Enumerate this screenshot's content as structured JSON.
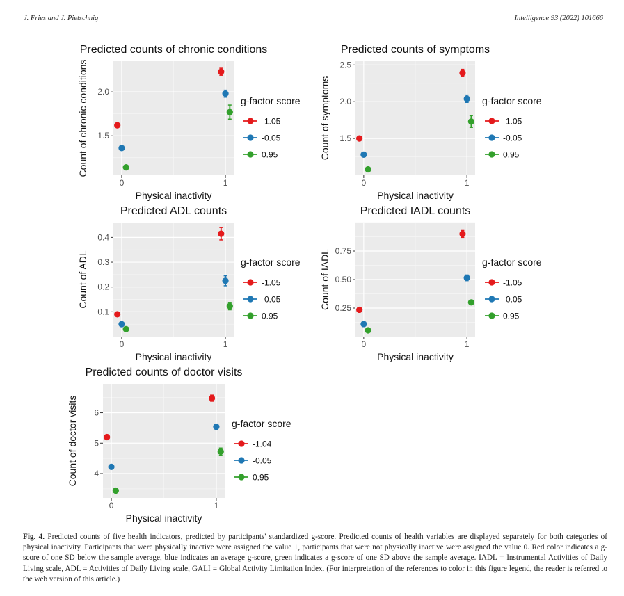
{
  "header": {
    "authors": "J. Fries and J. Pietschnig",
    "journal": "Intelligence 93 (2022) 101666"
  },
  "colors": {
    "red": "#e41a1c",
    "blue": "#1f78b4",
    "green": "#33a02c",
    "panel_bg": "#ebebeb",
    "grid": "#ffffff"
  },
  "caption": {
    "label": "Fig. 4.",
    "text": "Predicted counts of five health indicators, predicted by participants' standardized g-score. Predicted counts of health variables are displayed separately for both categories of physical inactivity. Participants that were physically inactive were assigned the value 1, participants that were not physically inactive were assigned the value 0. Red color indicates a g-score of one SD below the sample average, blue indicates an average g-score, green indicates a g-score of one SD above the sample average. IADL = Instrumental Activities of Daily Living scale, ADL = Activities of Daily Living scale, GALI = Global Activity Limitation Index. (For interpretation of the references to color in this figure legend, the reader is referred to the web version of this article.)"
  },
  "chart_data": [
    {
      "type": "scatter",
      "title": "Predicted counts of chronic conditions",
      "xlabel": "Physical inactivity",
      "ylabel": "Count of chronic conditions",
      "x_ticks": [
        "0",
        "1"
      ],
      "y_ticks": [
        "1.5",
        "2.0"
      ],
      "ylim": [
        1.05,
        2.35
      ],
      "legend_title": "g-factor score",
      "series": [
        {
          "name": "-1.05",
          "color": "red",
          "points": [
            {
              "x": 0,
              "y": 1.62
            },
            {
              "x": 1,
              "y": 2.23,
              "lo": 2.19,
              "hi": 2.27
            }
          ]
        },
        {
          "name": "-0.05",
          "color": "blue",
          "points": [
            {
              "x": 0,
              "y": 1.36
            },
            {
              "x": 1,
              "y": 1.98,
              "lo": 1.94,
              "hi": 2.02
            }
          ]
        },
        {
          "name": "0.95",
          "color": "green",
          "points": [
            {
              "x": 0,
              "y": 1.14
            },
            {
              "x": 1,
              "y": 1.77,
              "lo": 1.69,
              "hi": 1.85
            }
          ]
        }
      ]
    },
    {
      "type": "scatter",
      "title": "Predicted counts of symptoms",
      "xlabel": "Physical inactivity",
      "ylabel": "Count of symptoms",
      "x_ticks": [
        "0",
        "1"
      ],
      "y_ticks": [
        "1.5",
        "2.0",
        "2.5"
      ],
      "ylim": [
        1.0,
        2.55
      ],
      "legend_title": "g-factor score",
      "series": [
        {
          "name": "-1.05",
          "color": "red",
          "points": [
            {
              "x": 0,
              "y": 1.5
            },
            {
              "x": 1,
              "y": 2.39,
              "lo": 2.34,
              "hi": 2.44
            }
          ]
        },
        {
          "name": "-0.05",
          "color": "blue",
          "points": [
            {
              "x": 0,
              "y": 1.28
            },
            {
              "x": 1,
              "y": 2.04,
              "lo": 1.99,
              "hi": 2.09
            }
          ]
        },
        {
          "name": "0.95",
          "color": "green",
          "points": [
            {
              "x": 0,
              "y": 1.08
            },
            {
              "x": 1,
              "y": 1.73,
              "lo": 1.65,
              "hi": 1.81
            }
          ]
        }
      ]
    },
    {
      "type": "scatter",
      "title": "Predicted ADL counts",
      "xlabel": "Physical inactivity",
      "ylabel": "Count of ADL",
      "x_ticks": [
        "0",
        "1"
      ],
      "y_ticks": [
        "0.1",
        "0.2",
        "0.3",
        "0.4"
      ],
      "ylim": [
        0.0,
        0.46
      ],
      "legend_title": "g-factor score",
      "series": [
        {
          "name": "-1.05",
          "color": "red",
          "points": [
            {
              "x": 0,
              "y": 0.09
            },
            {
              "x": 1,
              "y": 0.415,
              "lo": 0.39,
              "hi": 0.44
            }
          ]
        },
        {
          "name": "-0.05",
          "color": "blue",
          "points": [
            {
              "x": 0,
              "y": 0.05
            },
            {
              "x": 1,
              "y": 0.225,
              "lo": 0.205,
              "hi": 0.245
            }
          ]
        },
        {
          "name": "0.95",
          "color": "green",
          "points": [
            {
              "x": 0,
              "y": 0.03
            },
            {
              "x": 1,
              "y": 0.123,
              "lo": 0.108,
              "hi": 0.138
            }
          ]
        }
      ]
    },
    {
      "type": "scatter",
      "title": "Predicted IADL counts",
      "xlabel": "Physical inactivity",
      "ylabel": "Count of IADL",
      "x_ticks": [
        "0",
        "1"
      ],
      "y_ticks": [
        "0.25",
        "0.50",
        "0.75"
      ],
      "ylim": [
        0.0,
        1.0
      ],
      "legend_title": "g-factor score",
      "series": [
        {
          "name": "-1.05",
          "color": "red",
          "points": [
            {
              "x": 0,
              "y": 0.235
            },
            {
              "x": 1,
              "y": 0.9,
              "lo": 0.87,
              "hi": 0.93
            }
          ]
        },
        {
          "name": "-0.05",
          "color": "blue",
          "points": [
            {
              "x": 0,
              "y": 0.11
            },
            {
              "x": 1,
              "y": 0.515,
              "lo": 0.49,
              "hi": 0.54
            }
          ]
        },
        {
          "name": "0.95",
          "color": "green",
          "points": [
            {
              "x": 0,
              "y": 0.055
            },
            {
              "x": 1,
              "y": 0.3,
              "lo": 0.28,
              "hi": 0.32
            }
          ]
        }
      ]
    },
    {
      "type": "scatter",
      "title": "Predicted counts of doctor visits",
      "xlabel": "Physical inactivity",
      "ylabel": "Count of doctor visits",
      "x_ticks": [
        "0",
        "1"
      ],
      "y_ticks": [
        "4",
        "5",
        "6"
      ],
      "ylim": [
        3.2,
        6.95
      ],
      "legend_title": "g-factor score",
      "series": [
        {
          "name": "-1.04",
          "color": "red",
          "points": [
            {
              "x": 0,
              "y": 5.2
            },
            {
              "x": 1,
              "y": 6.48,
              "lo": 6.38,
              "hi": 6.58
            }
          ]
        },
        {
          "name": "-0.05",
          "color": "blue",
          "points": [
            {
              "x": 0,
              "y": 4.22
            },
            {
              "x": 1,
              "y": 5.54,
              "lo": 5.45,
              "hi": 5.63
            }
          ]
        },
        {
          "name": "0.95",
          "color": "green",
          "points": [
            {
              "x": 0,
              "y": 3.44
            },
            {
              "x": 1,
              "y": 4.72,
              "lo": 4.6,
              "hi": 4.84
            }
          ]
        }
      ]
    }
  ]
}
